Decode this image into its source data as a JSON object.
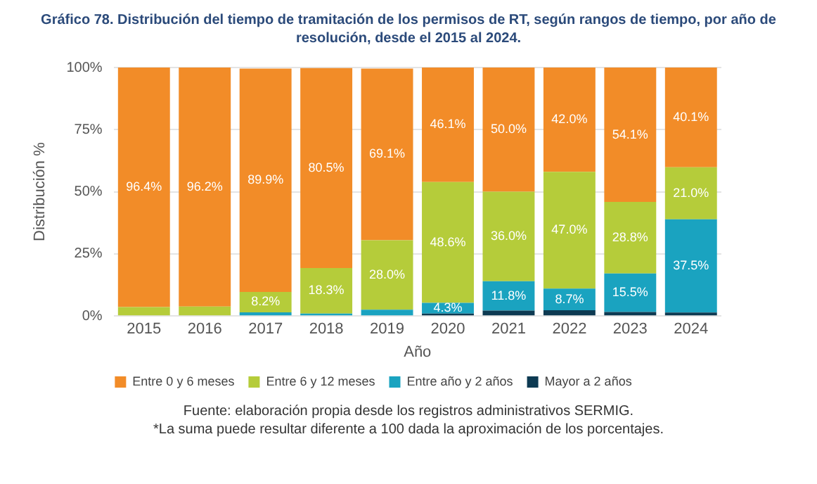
{
  "chart_data": {
    "type": "bar",
    "title": "Gráfico 78. Distribución del tiempo de tramitación de los permisos de RT, según rangos de tiempo, por año de resolución, desde el 2015 al 2024.",
    "xlabel": "Año",
    "ylabel": "Distribución %",
    "categories": [
      "2015",
      "2016",
      "2017",
      "2018",
      "2019",
      "2020",
      "2021",
      "2022",
      "2023",
      "2024"
    ],
    "stacked": true,
    "series": [
      {
        "name": "Mayor a 2 años",
        "color": "#0d3a52",
        "values": [
          0,
          0,
          null,
          null,
          null,
          1.0,
          2.2,
          2.3,
          1.6,
          1.4
        ],
        "value_labels": [
          null,
          null,
          null,
          null,
          null,
          null,
          null,
          null,
          null,
          null
        ]
      },
      {
        "name": "Entre año y 2 años",
        "color": "#1aa3c0",
        "values": [
          0,
          0,
          1.5,
          1.0,
          2.5,
          4.3,
          11.8,
          8.7,
          15.5,
          37.5
        ],
        "value_labels": [
          null,
          null,
          null,
          null,
          null,
          "4.3%",
          "11.8%",
          "8.7%",
          "15.5%",
          "37.5%"
        ]
      },
      {
        "name": "Entre 6 y 12 meses",
        "color": "#b5cc3a",
        "values": [
          3.6,
          3.8,
          8.2,
          18.3,
          28.0,
          48.6,
          36.0,
          47.0,
          28.8,
          21.0
        ],
        "value_labels": [
          null,
          null,
          "8.2%",
          "18.3%",
          "28.0%",
          "48.6%",
          "36.0%",
          "47.0%",
          "28.8%",
          "21.0%"
        ]
      },
      {
        "name": "Entre 0 y 6 meses",
        "color": "#f28c28",
        "values": [
          96.4,
          96.2,
          89.9,
          80.5,
          69.1,
          46.1,
          50.0,
          42.0,
          54.1,
          40.1
        ],
        "value_labels": [
          "96.4%",
          "96.2%",
          "89.9%",
          "80.5%",
          "69.1%",
          "46.1%",
          "50.0%",
          "42.0%",
          "54.1%",
          "40.1%"
        ]
      }
    ],
    "ylim": [
      0,
      100
    ],
    "yticks": [
      {
        "value": 0,
        "label": "0%"
      },
      {
        "value": 25,
        "label": "25%"
      },
      {
        "value": 50,
        "label": "50%"
      },
      {
        "value": 75,
        "label": "75%"
      },
      {
        "value": 100,
        "label": "100%"
      }
    ],
    "grid": "y",
    "legend": "bottom",
    "annotations": [
      "Fuente: elaboración propia desde los registros administrativos SERMIG.",
      "*La suma puede resultar diferente a 100 dada la aproximación de los porcentajes."
    ]
  }
}
